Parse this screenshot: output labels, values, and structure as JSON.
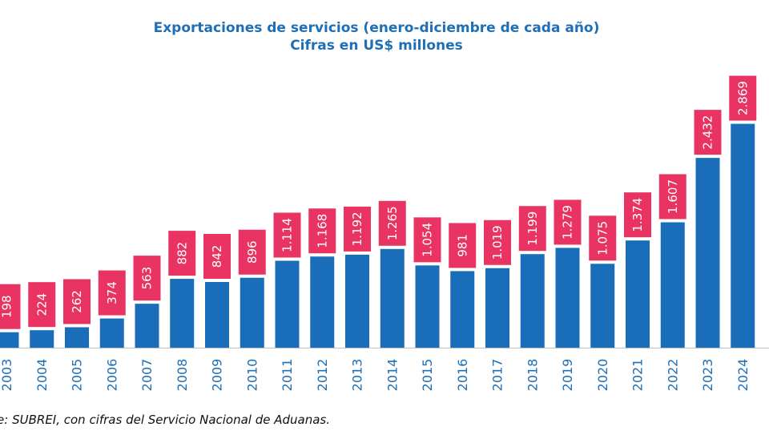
{
  "colors": {
    "bar": "#1a6db8",
    "label_box": "#e83363",
    "title": "#1f6fb6",
    "axis": "#bfbfbf"
  },
  "chart_data": {
    "type": "bar",
    "title": "Exportaciones de servicios (enero-diciembre de cada año)",
    "subtitle": "Cifras en US$ millones",
    "xlabel": "",
    "ylabel": "",
    "ylim": [
      0,
      3300
    ],
    "categories": [
      "2003",
      "2004",
      "2005",
      "2006",
      "2007",
      "2008",
      "2009",
      "2010",
      "2011",
      "2012",
      "2013",
      "2014",
      "2015",
      "2016",
      "2017",
      "2018",
      "2019",
      "2020",
      "2021",
      "2022",
      "2023",
      "2024"
    ],
    "values": [
      198,
      224,
      262,
      374,
      563,
      882,
      842,
      896,
      1114,
      1168,
      1192,
      1265,
      1054,
      981,
      1019,
      1199,
      1279,
      1075,
      1374,
      1607,
      2432,
      2869
    ],
    "value_labels": [
      "198",
      "224",
      "262",
      "374",
      "563",
      "882",
      "842",
      "896",
      "1.114",
      "1.168",
      "1.192",
      "1.265",
      "1.054",
      "981",
      "1.019",
      "1.199",
      "1.279",
      "1.075",
      "1.374",
      "1.607",
      "2.432",
      "2.869"
    ]
  },
  "footer": {
    "source": "ite: SUBREI, con cifras del Servicio Nacional de Aduanas."
  }
}
